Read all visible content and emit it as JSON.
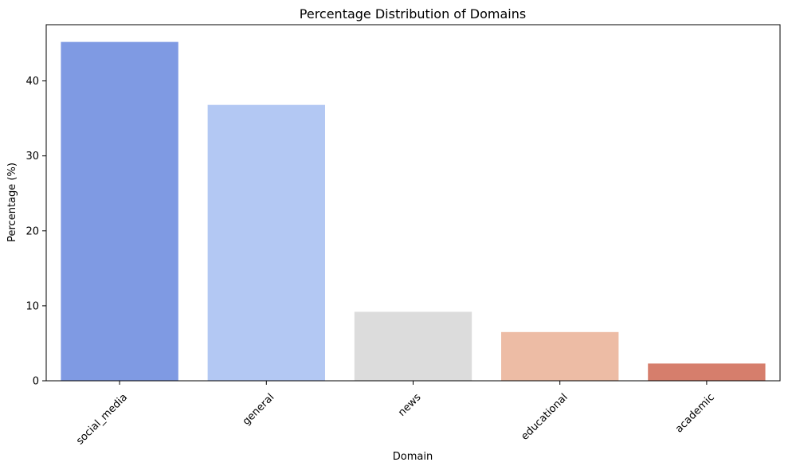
{
  "chart_data": {
    "type": "bar",
    "title": "Percentage Distribution of Domains",
    "xlabel": "Domain",
    "ylabel": "Percentage (%)",
    "categories": [
      "social_media",
      "general",
      "news",
      "educational",
      "academic"
    ],
    "values": [
      45.2,
      36.8,
      9.2,
      6.5,
      2.3
    ],
    "colors": [
      "#7f9ae3",
      "#b3c8f3",
      "#dcdcdc",
      "#edbca5",
      "#d67e6c"
    ],
    "ylim": [
      0,
      47.5
    ],
    "yticks": [
      0,
      10,
      20,
      30,
      40
    ],
    "grid": false,
    "legend": "none"
  }
}
